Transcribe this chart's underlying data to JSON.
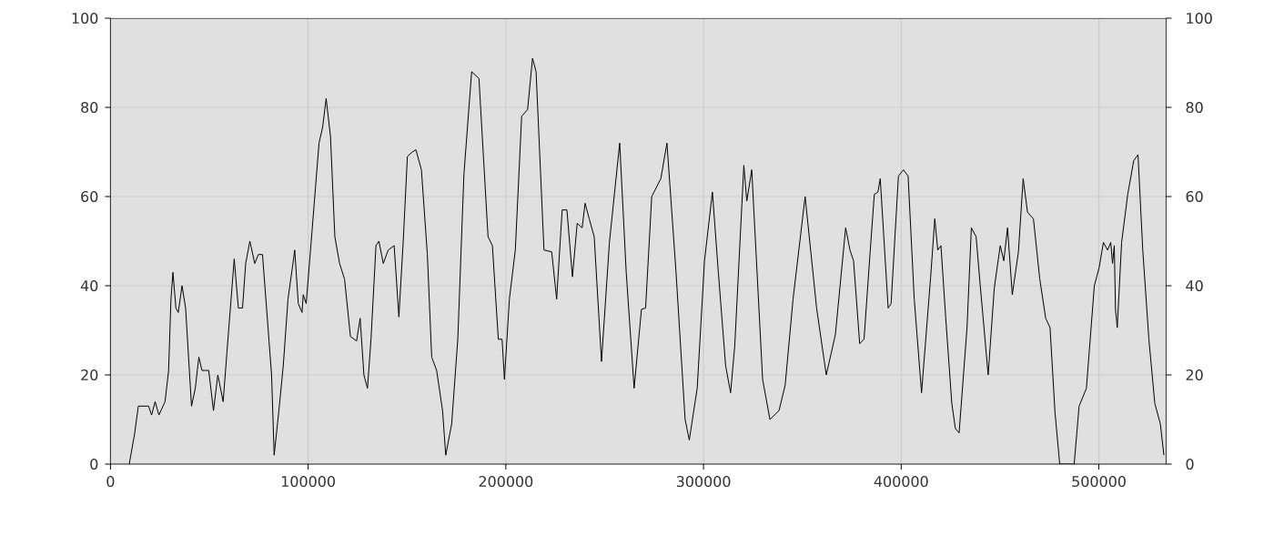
{
  "chart_data": {
    "type": "line",
    "x": [
      9500,
      12200,
      14100,
      19300,
      20800,
      22600,
      24500,
      27600,
      29400,
      30600,
      31600,
      33100,
      34300,
      36200,
      38000,
      41000,
      42900,
      44700,
      46300,
      49700,
      52100,
      54300,
      57000,
      58900,
      62600,
      64700,
      66800,
      68400,
      70500,
      73000,
      74800,
      76900,
      81500,
      82800,
      85200,
      87400,
      89800,
      92000,
      93200,
      95000,
      96900,
      97500,
      99000,
      101200,
      103700,
      105500,
      107300,
      109100,
      111300,
      113500,
      115900,
      118400,
      121400,
      124500,
      126300,
      128200,
      130000,
      131800,
      134300,
      135800,
      138000,
      140500,
      143500,
      145900,
      148100,
      150200,
      152700,
      154500,
      157300,
      160300,
      162500,
      165000,
      168000,
      169600,
      172600,
      175700,
      178800,
      182700,
      186400,
      191000,
      193200,
      196200,
      198100,
      199300,
      201800,
      204800,
      208000,
      211000,
      213500,
      215300,
      219300,
      223200,
      225700,
      228500,
      230900,
      233700,
      236100,
      238600,
      240100,
      242200,
      244700,
      248400,
      252400,
      257600,
      260900,
      264900,
      268600,
      270700,
      273800,
      278400,
      281500,
      286100,
      290700,
      292800,
      296800,
      300500,
      304500,
      307500,
      311200,
      313700,
      315800,
      320400,
      321900,
      324400,
      329900,
      333600,
      338200,
      341300,
      345300,
      351400,
      357200,
      362100,
      366700,
      371900,
      374100,
      375900,
      379000,
      381200,
      384200,
      386400,
      388200,
      389400,
      393400,
      394900,
      398600,
      401100,
      403500,
      406600,
      410300,
      414900,
      417000,
      418500,
      420100,
      422500,
      425600,
      427400,
      429300,
      433300,
      435500,
      437900,
      440000,
      444000,
      447100,
      450100,
      451900,
      453800,
      456200,
      459300,
      461700,
      463900,
      466900,
      470100,
      473100,
      475300,
      477800,
      480200,
      487500,
      490000,
      493700,
      497700,
      500100,
      502300,
      504400,
      506000,
      506900,
      507800,
      508400,
      509300,
      511500,
      514600,
      517600,
      519800,
      522200,
      525300,
      528300,
      531100,
      532900
    ],
    "series": [
      {
        "color": "#000000",
        "values": [
          0,
          6.8,
          13,
          13,
          11,
          14,
          11,
          14,
          21,
          37,
          43,
          35,
          34,
          40,
          35,
          13,
          17,
          24,
          21,
          21,
          12,
          20,
          14,
          25,
          46,
          35,
          35,
          45,
          50,
          45,
          47,
          47,
          20,
          2,
          12,
          22,
          37,
          44,
          48,
          36,
          34,
          38,
          36,
          48,
          62,
          72,
          75.5,
          82,
          73.5,
          51,
          45,
          41.5,
          28.6,
          27.6,
          32.7,
          20,
          17,
          28,
          49,
          50,
          45,
          48,
          49,
          33,
          50,
          69,
          70,
          70.5,
          66,
          47,
          24,
          21,
          12,
          2,
          9,
          28,
          65,
          88,
          86.5,
          51,
          49,
          28,
          28,
          19,
          37,
          48,
          78,
          79.5,
          91,
          88,
          48,
          47.6,
          37,
          57,
          57,
          42,
          54,
          53,
          58.5,
          55,
          51,
          23,
          49.7,
          72,
          43,
          17,
          34.7,
          35,
          60,
          64,
          72,
          43,
          10,
          5.4,
          17,
          45.6,
          61,
          43,
          22,
          16,
          26.5,
          67,
          59,
          66,
          19,
          10,
          12,
          17.7,
          37,
          60,
          35,
          20,
          29,
          53,
          48,
          45.6,
          27,
          28,
          47,
          60.5,
          61,
          64,
          35,
          36,
          64.6,
          66,
          64.6,
          37,
          16,
          42,
          55,
          48,
          49,
          33,
          13.6,
          8,
          7,
          30.6,
          53,
          51,
          40,
          20,
          39.5,
          49,
          45.6,
          53,
          38,
          47.6,
          64,
          56.5,
          55,
          41.5,
          32.7,
          30.6,
          11.6,
          0,
          0,
          13,
          17,
          40,
          44,
          49.7,
          48,
          49.7,
          45,
          49,
          34.7,
          30.6,
          49.7,
          60.5,
          68,
          69.4,
          48,
          28,
          13.6,
          9,
          2
        ]
      }
    ],
    "xlim": [
      0,
      534000
    ],
    "xticks": [
      0,
      100000,
      200000,
      300000,
      400000,
      500000
    ],
    "ylim": [
      0,
      100
    ],
    "yticks": [
      0,
      20,
      40,
      60,
      80,
      100
    ],
    "y2lim": [
      0,
      100
    ],
    "y2ticks": [
      0,
      20,
      40,
      60,
      80,
      100
    ],
    "grid": true,
    "marker": "none",
    "line_style": "solid"
  }
}
